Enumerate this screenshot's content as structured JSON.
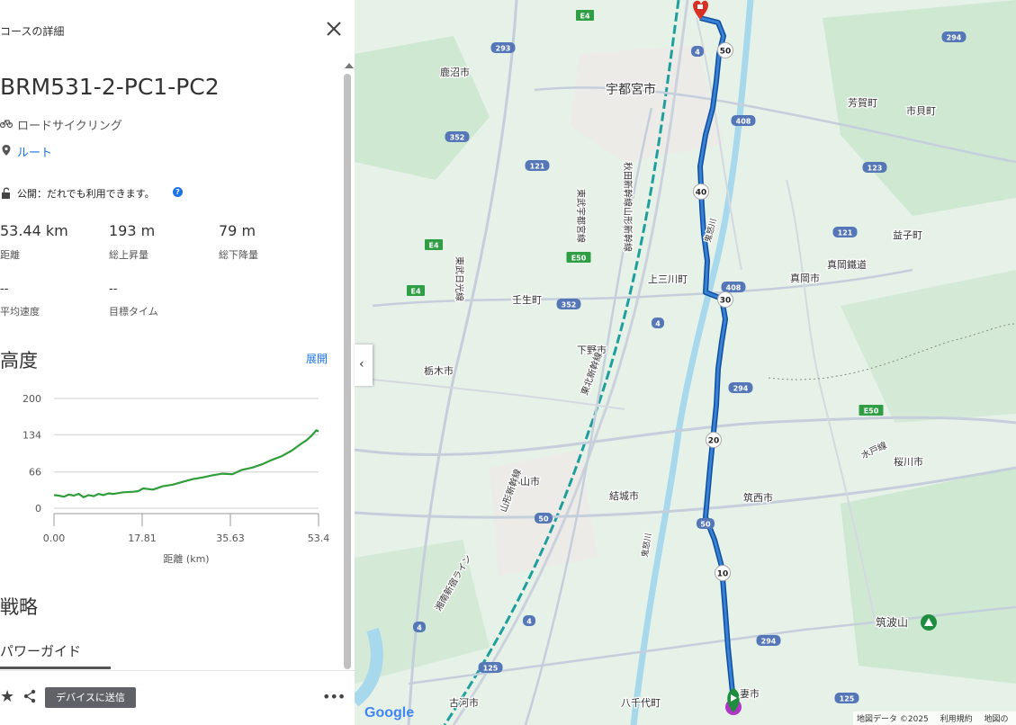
{
  "panel": {
    "header_title": "コースの詳細",
    "course_name": "BRM531-2-PC1-PC2",
    "activity": "ロードサイクリング",
    "route_label": "ルート",
    "privacy": "公開：だれでも利用できます。",
    "help": "?",
    "stats": [
      {
        "value": "53.44 km",
        "label": "距離"
      },
      {
        "value": "193 m",
        "label": "総上昇量"
      },
      {
        "value": "79 m",
        "label": "総下降量"
      }
    ],
    "stats2": [
      {
        "value": "--",
        "label": "平均速度"
      },
      {
        "value": "--",
        "label": "目標タイム"
      }
    ],
    "elevation_title": "高度",
    "expand_label": "展開",
    "strategy_title": "戦略",
    "power_guide": "パワーガイド",
    "send_button": "デバイスに送信",
    "more": "•••"
  },
  "chart_data": {
    "type": "area",
    "title": "",
    "xlabel": "距離 (km)",
    "ylabel": "",
    "x_ticks": [
      "0.00",
      "17.81",
      "35.63",
      "53.4"
    ],
    "y_ticks": [
      "200",
      "134",
      "66",
      "0"
    ],
    "xlim": [
      0,
      53.44
    ],
    "ylim": [
      0,
      200
    ],
    "grid": true,
    "color": "#2e9e3a",
    "series": [
      {
        "x": [
          0,
          1,
          2,
          3,
          4,
          5,
          6,
          7,
          8,
          9,
          10,
          11,
          12,
          14,
          16,
          17,
          18,
          20,
          22,
          24,
          26,
          28,
          30,
          32,
          34,
          36,
          38,
          40,
          42,
          44,
          46,
          48,
          50,
          51,
          52,
          53,
          53.44
        ],
        "y": [
          24,
          23,
          21,
          25,
          23,
          26,
          20,
          24,
          22,
          26,
          24,
          27,
          26,
          29,
          30,
          31,
          36,
          34,
          40,
          43,
          48,
          53,
          56,
          60,
          63,
          62,
          70,
          74,
          80,
          88,
          95,
          105,
          118,
          124,
          132,
          142,
          140
        ]
      }
    ]
  },
  "map": {
    "labels": [
      {
        "text": "宇都宮市"
      },
      {
        "text": "鹿沼市"
      },
      {
        "text": "芳賀町"
      },
      {
        "text": "市貝町"
      },
      {
        "text": "益子町"
      },
      {
        "text": "上三川町"
      },
      {
        "text": "真岡市"
      },
      {
        "text": "真岡鐵道"
      },
      {
        "text": "壬生町"
      },
      {
        "text": "下野市"
      },
      {
        "text": "栃木市"
      },
      {
        "text": "小山市"
      },
      {
        "text": "結城市"
      },
      {
        "text": "筑西市"
      },
      {
        "text": "桜川市"
      },
      {
        "text": "筑波山"
      },
      {
        "text": "古河市"
      },
      {
        "text": "八千代町"
      },
      {
        "text": "妻市"
      },
      {
        "text": "東武宇都宮線"
      },
      {
        "text": "東武日光線"
      },
      {
        "text": "秋田新幹線山形新幹線"
      },
      {
        "text": "東北新幹線"
      },
      {
        "text": "山形新幹線"
      },
      {
        "text": "湘南新宿ライン"
      },
      {
        "text": "水戸線"
      },
      {
        "text": "鬼怒川"
      },
      {
        "text": "鬼怒川"
      }
    ],
    "road_shields": [
      "E4",
      "E4",
      "E4",
      "293",
      "352",
      "121",
      "E50",
      "352",
      "4",
      "4",
      "408",
      "408",
      "294",
      "294",
      "123",
      "121",
      "E50",
      "50",
      "50",
      "125",
      "125",
      "4",
      "4",
      "294"
    ],
    "route_markers": [
      "50",
      "40",
      "30",
      "20",
      "10"
    ],
    "collapse_label": "‹",
    "google_logo": "Google",
    "attribution": [
      "地図データ ©2025",
      "利用規約",
      "地図の"
    ],
    "scale": "5"
  }
}
